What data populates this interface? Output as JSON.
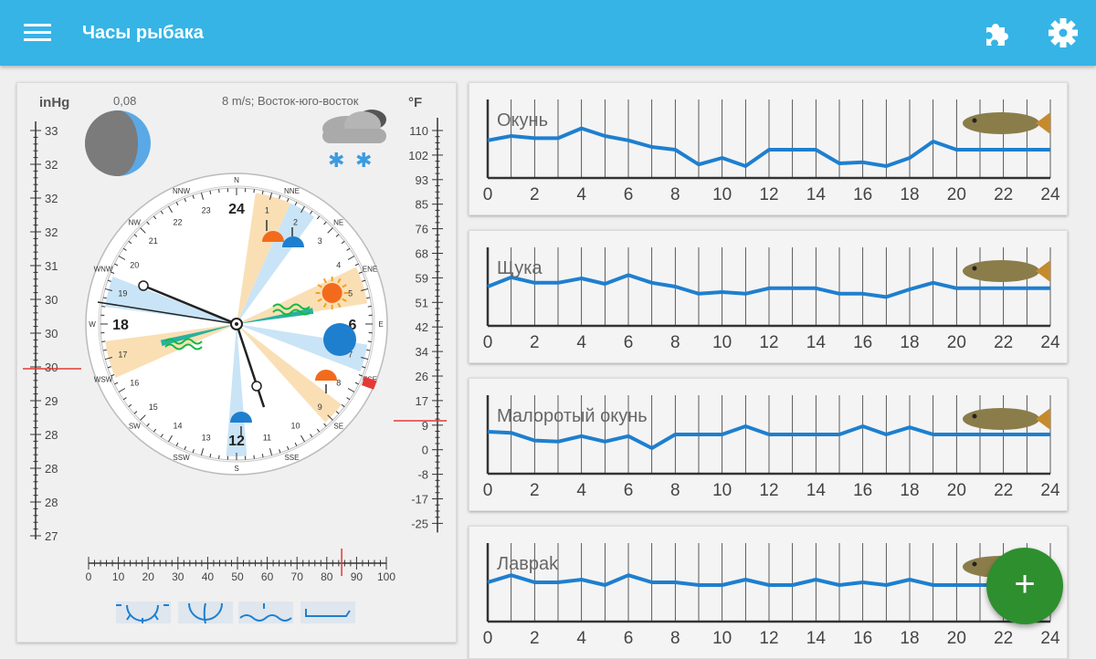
{
  "app": {
    "title": "Часы рыбака"
  },
  "colors": {
    "appbar": "#36b4e6",
    "activity_line": "#1e7fcf",
    "fab": "#2e8f2e",
    "marker": "#e53935"
  },
  "toolbar": {
    "menu_icon": "menu-icon",
    "puzzle_icon": "puzzle-icon",
    "settings_icon": "gear-icon"
  },
  "weather": {
    "pressure_unit": "inHg",
    "pressure_scale": [
      "33",
      "32",
      "32",
      "32",
      "31",
      "30",
      "30",
      "30",
      "29",
      "28",
      "28",
      "28",
      "27"
    ],
    "pressure_value": "30",
    "temp_unit": "°F",
    "temp_scale": [
      "110",
      "102",
      "93",
      "85",
      "76",
      "68",
      "59",
      "51",
      "42",
      "34",
      "26",
      "17",
      "9",
      "0",
      "-8",
      "-17",
      "-25"
    ],
    "temp_value": "9",
    "moon_phase_value": "0,08",
    "wind": "8 m/s; Восток-юго-восток",
    "forecast_icon": "cloud-snow-icon",
    "humidity_scale": [
      "0",
      "10",
      "20",
      "30",
      "40",
      "50",
      "60",
      "70",
      "80",
      "90",
      "100"
    ],
    "humidity_value": 85
  },
  "compass": {
    "directions": [
      "N",
      "NNE",
      "NE",
      "ENE",
      "E",
      "ESE",
      "SE",
      "SSE",
      "S",
      "SSW",
      "SW",
      "WSW",
      "W",
      "WNW",
      "NW",
      "NNW"
    ],
    "main_hours": [
      "24",
      "6",
      "12",
      "18"
    ],
    "hours": [
      "1",
      "2",
      "3",
      "4",
      "5",
      "7",
      "8",
      "9",
      "10",
      "11",
      "13",
      "14",
      "15",
      "16",
      "17",
      "19",
      "20",
      "21",
      "22",
      "23"
    ],
    "events": [
      "moonrise",
      "sunrise",
      "major-period",
      "moonset",
      "sunset",
      "minor-period"
    ]
  },
  "bottom_icons": [
    "sun-icon",
    "moon-phase-icon",
    "water-icon",
    "tide-icon"
  ],
  "chart_data": [
    {
      "type": "line",
      "title": "Окунь",
      "fish_icon": "perch-icon",
      "x": [
        0,
        1,
        2,
        3,
        4,
        5,
        6,
        7,
        8,
        9,
        10,
        11,
        12,
        13,
        14,
        15,
        16,
        17,
        18,
        19,
        20,
        21,
        22,
        23,
        24
      ],
      "xticks": [
        "0",
        "2",
        "4",
        "6",
        "8",
        "10",
        "12",
        "14",
        "16",
        "18",
        "20",
        "22",
        "24"
      ],
      "values": [
        0.52,
        0.6,
        0.56,
        0.56,
        0.74,
        0.6,
        0.52,
        0.4,
        0.35,
        0.08,
        0.2,
        0.05,
        0.35,
        0.35,
        0.35,
        0.1,
        0.12,
        0.05,
        0.2,
        0.5,
        0.35,
        0.35,
        0.35,
        0.35,
        0.35
      ]
    },
    {
      "type": "line",
      "title": "Щука",
      "fish_icon": "pike-icon",
      "x": [
        0,
        1,
        2,
        3,
        4,
        5,
        6,
        7,
        8,
        9,
        10,
        11,
        12,
        13,
        14,
        15,
        16,
        17,
        18,
        19,
        20,
        21,
        22,
        23,
        24
      ],
      "xticks": [
        "0",
        "2",
        "4",
        "6",
        "8",
        "10",
        "12",
        "14",
        "16",
        "18",
        "20",
        "22",
        "24"
      ],
      "values": [
        0.55,
        0.72,
        0.62,
        0.62,
        0.7,
        0.6,
        0.76,
        0.62,
        0.55,
        0.42,
        0.45,
        0.42,
        0.52,
        0.52,
        0.52,
        0.42,
        0.42,
        0.36,
        0.5,
        0.62,
        0.52,
        0.52,
        0.52,
        0.52,
        0.52
      ]
    },
    {
      "type": "line",
      "title": "Малоротый окунь",
      "fish_icon": "smallmouth-bass-icon",
      "x": [
        0,
        1,
        2,
        3,
        4,
        5,
        6,
        7,
        8,
        9,
        10,
        11,
        12,
        13,
        14,
        15,
        16,
        17,
        18,
        19,
        20,
        21,
        22,
        23,
        24
      ],
      "xticks": [
        "0",
        "2",
        "4",
        "6",
        "8",
        "10",
        "12",
        "14",
        "16",
        "18",
        "20",
        "22",
        "24"
      ],
      "values": [
        0.6,
        0.58,
        0.44,
        0.42,
        0.52,
        0.42,
        0.52,
        0.3,
        0.55,
        0.55,
        0.55,
        0.7,
        0.55,
        0.55,
        0.55,
        0.55,
        0.7,
        0.55,
        0.68,
        0.55,
        0.55,
        0.55,
        0.55,
        0.55,
        0.55
      ]
    },
    {
      "type": "line",
      "title": "Лавраk",
      "fish_icon": "sea-bass-icon",
      "x": [
        0,
        1,
        2,
        3,
        4,
        5,
        6,
        7,
        8,
        9,
        10,
        11,
        12,
        13,
        14,
        15,
        16,
        17,
        18,
        19,
        20,
        21,
        22,
        23,
        24
      ],
      "xticks": [
        "0",
        "2",
        "4",
        "6",
        "8",
        "10",
        "12",
        "14",
        "16",
        "18",
        "20",
        "22",
        "24"
      ],
      "values": [
        0.55,
        0.68,
        0.55,
        0.55,
        0.6,
        0.5,
        0.68,
        0.55,
        0.55,
        0.5,
        0.5,
        0.6,
        0.5,
        0.5,
        0.6,
        0.5,
        0.55,
        0.5,
        0.6,
        0.5,
        0.5,
        0.5,
        0.5,
        0.5,
        0.5
      ]
    }
  ]
}
